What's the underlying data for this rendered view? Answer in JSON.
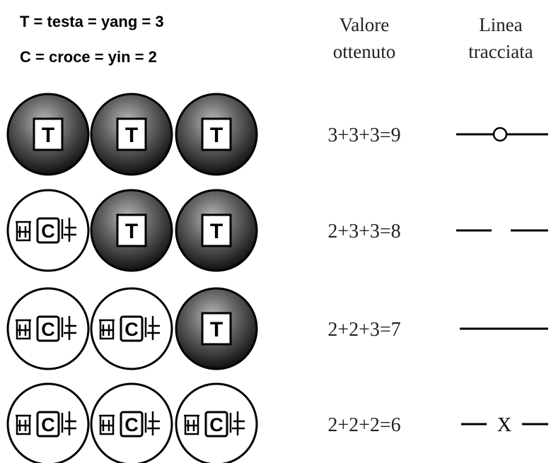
{
  "legend": [
    "T = testa = yang = 3",
    "C = croce = yin = 2"
  ],
  "header": {
    "value": [
      "Valore",
      "ottenuto"
    ],
    "line": [
      "Linea",
      "tracciata"
    ]
  },
  "rows": [
    {
      "coins": [
        "T",
        "T",
        "T"
      ],
      "sum": "3+3+3=9"
    },
    {
      "coins": [
        "C",
        "T",
        "T"
      ],
      "sum": "2+3+3=8"
    },
    {
      "coins": [
        "C",
        "C",
        "T"
      ],
      "sum": "2+2+3=7"
    },
    {
      "coins": [
        "C",
        "C",
        "C"
      ],
      "sum": "2+2+2=6",
      "mark": "X"
    }
  ]
}
